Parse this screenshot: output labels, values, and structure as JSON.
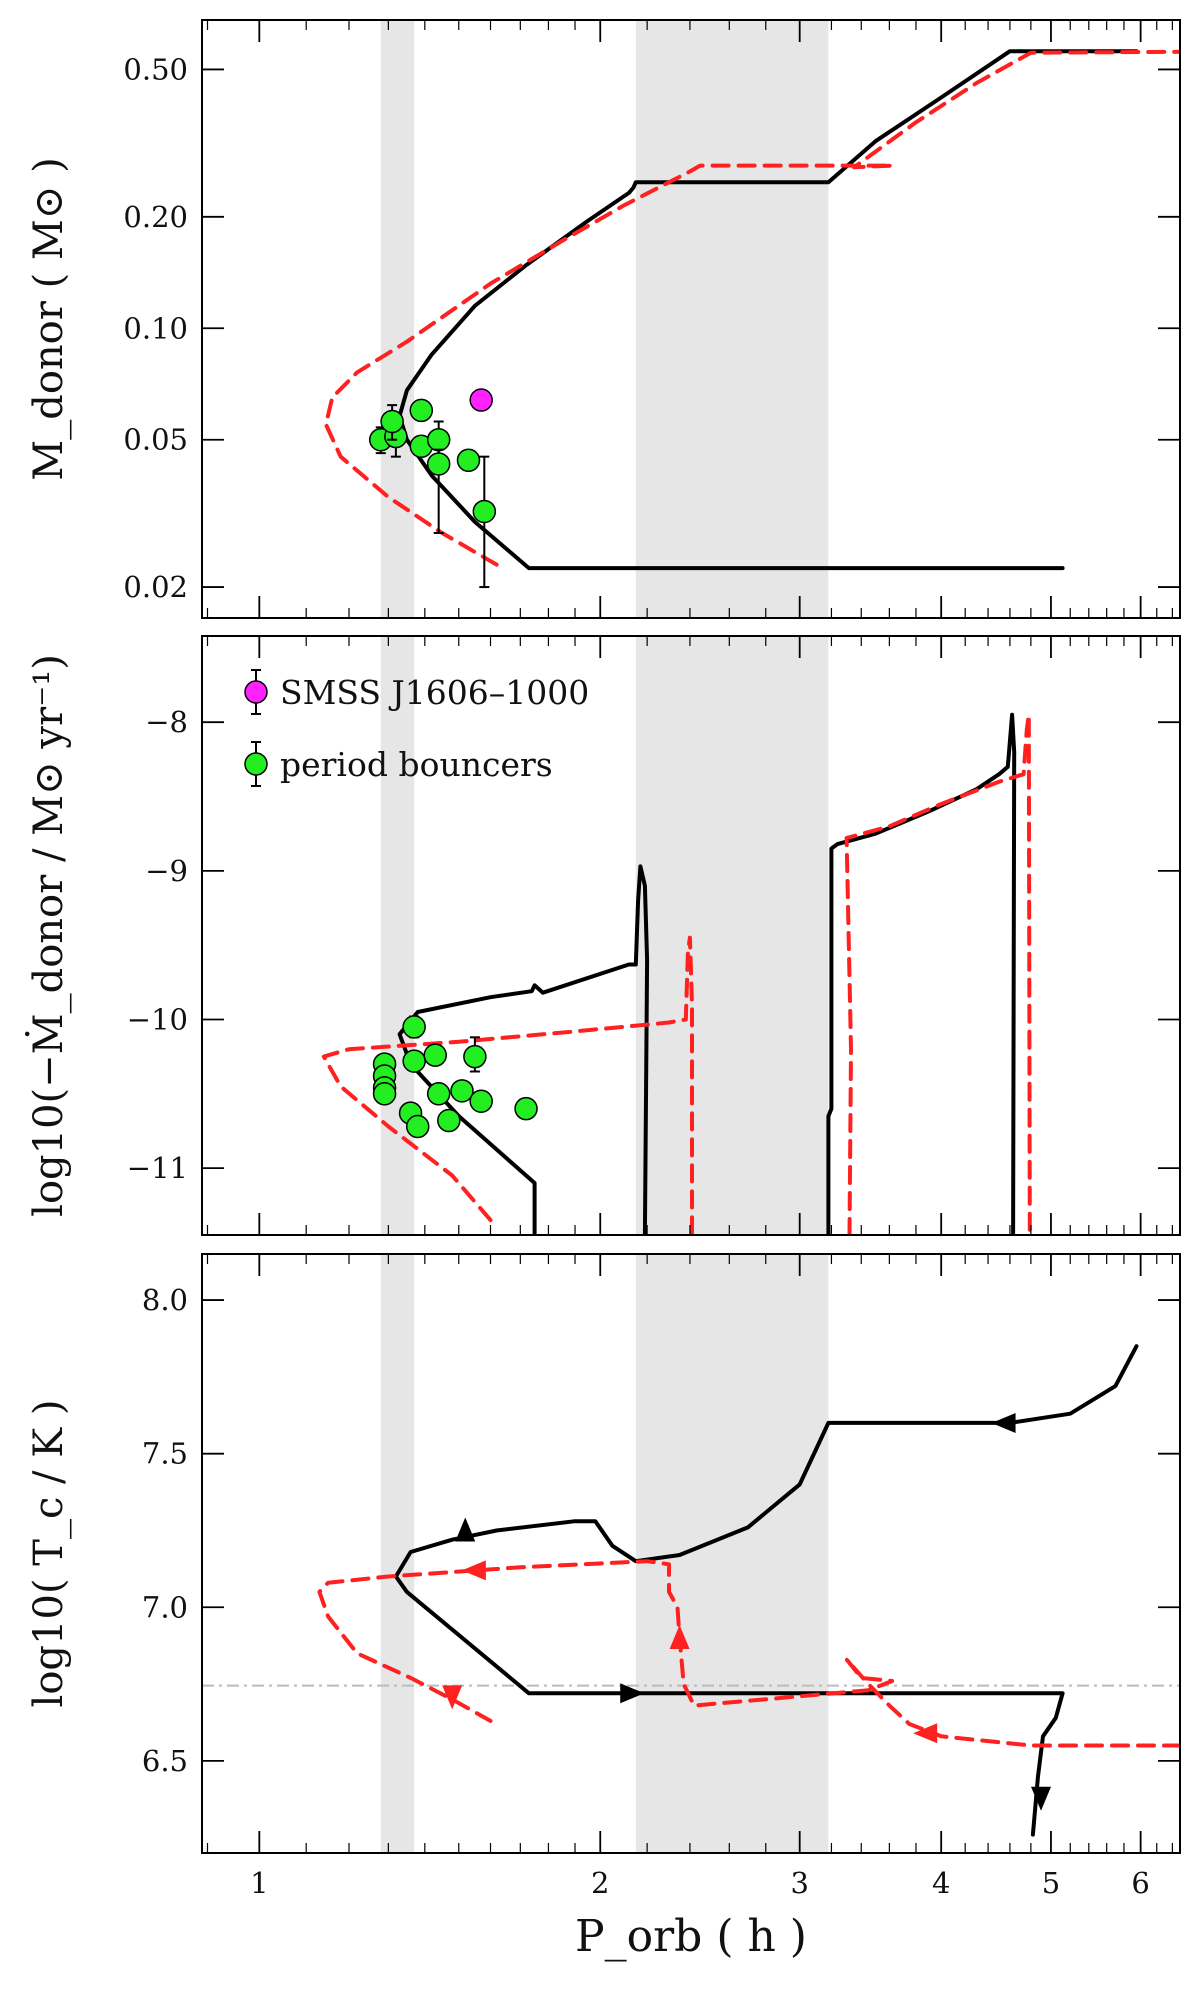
{
  "chart_data": [
    {
      "type": "line",
      "panel": "donor-mass",
      "ylabel": "M_donor ( M⊙ )",
      "yscale": "log",
      "xscale": "log",
      "ylim": [
        0.0165,
        0.68
      ],
      "xlim": [
        0.89,
        6.5
      ],
      "yticks": [
        0.02,
        0.05,
        0.1,
        0.2,
        0.5
      ],
      "ytick_labels": [
        "0.02",
        "0.05",
        "0.10",
        "0.20",
        "0.50"
      ],
      "shaded_x_ranges": [
        [
          1.28,
          1.37
        ],
        [
          2.15,
          3.18
        ]
      ],
      "series": [
        {
          "style": "solid",
          "color": "#000000",
          "points": [
            [
              5.12,
              0.0225
            ],
            [
              1.73,
              0.0225
            ],
            [
              1.55,
              0.03
            ],
            [
              1.42,
              0.04
            ],
            [
              1.35,
              0.05
            ],
            [
              1.33,
              0.058
            ],
            [
              1.35,
              0.068
            ],
            [
              1.42,
              0.085
            ],
            [
              1.55,
              0.115
            ],
            [
              1.72,
              0.148
            ],
            [
              1.95,
              0.195
            ],
            [
              2.12,
              0.232
            ],
            [
              2.14,
              0.24
            ],
            [
              2.15,
              0.248
            ],
            [
              3.18,
              0.248
            ],
            [
              3.5,
              0.32
            ],
            [
              4.0,
              0.42
            ],
            [
              4.6,
              0.56
            ],
            [
              5.95,
              0.56
            ]
          ]
        },
        {
          "style": "dashed",
          "color": "#ff2020",
          "points": [
            [
              1.62,
              0.023
            ],
            [
              1.45,
              0.028
            ],
            [
              1.3,
              0.035
            ],
            [
              1.18,
              0.045
            ],
            [
              1.145,
              0.055
            ],
            [
              1.16,
              0.065
            ],
            [
              1.22,
              0.076
            ],
            [
              1.35,
              0.092
            ],
            [
              1.6,
              0.132
            ],
            [
              1.85,
              0.172
            ],
            [
              2.1,
              0.215
            ],
            [
              2.4,
              0.265
            ],
            [
              2.45,
              0.275
            ],
            [
              3.62,
              0.275
            ],
            [
              3.35,
              0.272
            ],
            [
              3.8,
              0.36
            ],
            [
              4.3,
              0.46
            ],
            [
              4.8,
              0.555
            ],
            [
              6.5,
              0.558
            ]
          ]
        }
      ],
      "points": [
        {
          "group": "SMSS J1606–1000",
          "color": "#ff22ff",
          "data": [
            [
              1.57,
              0.064,
              null,
              null
            ]
          ]
        },
        {
          "group": "period bouncers",
          "color": "#22ee22",
          "data": [
            [
              1.28,
              0.05,
              0.046,
              0.054
            ],
            [
              1.32,
              0.051,
              0.045,
              0.057
            ],
            [
              1.31,
              0.056,
              0.05,
              0.062
            ],
            [
              1.39,
              0.06,
              null,
              null
            ],
            [
              1.39,
              0.048,
              null,
              null
            ],
            [
              1.44,
              0.05,
              0.044,
              0.056
            ],
            [
              1.44,
              0.043,
              0.028,
              0.047
            ],
            [
              1.53,
              0.044,
              null,
              null
            ],
            [
              1.58,
              0.032,
              0.02,
              0.045
            ]
          ]
        }
      ]
    },
    {
      "type": "line",
      "panel": "mass-transfer-rate",
      "ylabel": "log10(−Ṁ_donor / M⊙ yr⁻¹)",
      "xscale": "log",
      "ylim": [
        -11.45,
        -7.42
      ],
      "xlim": [
        0.89,
        6.5
      ],
      "yticks": [
        -11,
        -10,
        -9,
        -8
      ],
      "ytick_labels": [
        "−11",
        "−10",
        "−9",
        "−8"
      ],
      "shaded_x_ranges": [
        [
          1.28,
          1.37
        ],
        [
          2.15,
          3.18
        ]
      ],
      "legend": {
        "position": "top-left",
        "entries": [
          "SMSS J1606–1000",
          "period bouncers"
        ]
      },
      "series": [
        {
          "style": "solid",
          "color": "#000000",
          "segments": [
            [
              [
                1.75,
                -11.45
              ],
              [
                1.75,
                -11.1
              ],
              [
                1.5,
                -10.65
              ],
              [
                1.36,
                -10.3
              ],
              [
                1.33,
                -10.1
              ],
              [
                1.38,
                -9.95
              ],
              [
                1.6,
                -9.85
              ],
              [
                1.74,
                -9.81
              ],
              [
                1.75,
                -9.77
              ],
              [
                1.78,
                -9.82
              ],
              [
                2.12,
                -9.63
              ],
              [
                2.15,
                -9.63
              ],
              [
                2.16,
                -9.2
              ],
              [
                2.17,
                -8.97
              ],
              [
                2.19,
                -9.1
              ],
              [
                2.2,
                -9.6
              ],
              [
                2.19,
                -11.45
              ]
            ],
            [
              [
                3.18,
                -11.45
              ],
              [
                3.18,
                -10.65
              ],
              [
                3.2,
                -10.6
              ],
              [
                3.2,
                -8.85
              ],
              [
                3.24,
                -8.82
              ],
              [
                3.5,
                -8.75
              ],
              [
                3.9,
                -8.6
              ],
              [
                4.3,
                -8.45
              ],
              [
                4.5,
                -8.35
              ],
              [
                4.58,
                -8.3
              ],
              [
                4.62,
                -7.95
              ],
              [
                4.64,
                -8.2
              ],
              [
                4.63,
                -11.45
              ]
            ]
          ]
        },
        {
          "style": "dashed",
          "color": "#ff2020",
          "segments": [
            [
              [
                1.6,
                -11.35
              ],
              [
                1.48,
                -11.05
              ],
              [
                1.3,
                -10.72
              ],
              [
                1.18,
                -10.45
              ],
              [
                1.14,
                -10.25
              ],
              [
                1.2,
                -10.2
              ],
              [
                1.5,
                -10.15
              ],
              [
                1.9,
                -10.08
              ],
              [
                2.3,
                -10.02
              ],
              [
                2.38,
                -10.0
              ],
              [
                2.39,
                -9.55
              ],
              [
                2.4,
                -9.45
              ],
              [
                2.41,
                -9.9
              ],
              [
                2.41,
                -11.45
              ]
            ],
            [
              [
                3.32,
                -11.45
              ],
              [
                3.33,
                -10.2
              ],
              [
                3.3,
                -8.78
              ],
              [
                3.6,
                -8.7
              ],
              [
                4.0,
                -8.55
              ],
              [
                4.5,
                -8.4
              ],
              [
                4.73,
                -8.35
              ],
              [
                4.76,
                -8.05
              ],
              [
                4.78,
                -7.95
              ],
              [
                4.79,
                -11.45
              ]
            ]
          ]
        }
      ],
      "points": [
        {
          "group": "period bouncers",
          "color": "#22ee22",
          "data": [
            [
              1.29,
              -10.3,
              null,
              null
            ],
            [
              1.29,
              -10.38,
              null,
              null
            ],
            [
              1.29,
              -10.46,
              null,
              null
            ],
            [
              1.29,
              -10.5,
              null,
              null
            ],
            [
              1.37,
              -10.05,
              -9.98,
              -10.12
            ],
            [
              1.37,
              -10.28,
              null,
              null
            ],
            [
              1.36,
              -10.63,
              null,
              null
            ],
            [
              1.38,
              -10.72,
              null,
              null
            ],
            [
              1.43,
              -10.24,
              null,
              null
            ],
            [
              1.44,
              -10.5,
              null,
              null
            ],
            [
              1.47,
              -10.68,
              null,
              null
            ],
            [
              1.51,
              -10.48,
              null,
              null
            ],
            [
              1.55,
              -10.25,
              -10.12,
              -10.35
            ],
            [
              1.57,
              -10.55,
              null,
              null
            ],
            [
              1.72,
              -10.6,
              null,
              null
            ]
          ]
        }
      ]
    },
    {
      "type": "line",
      "panel": "central-temperature",
      "ylabel": "log10( T_c / K )",
      "xlabel": "P_orb ( h )",
      "xscale": "log",
      "ylim": [
        6.2,
        8.15
      ],
      "xlim": [
        0.89,
        6.5
      ],
      "yticks": [
        6.5,
        7.0,
        7.5,
        8.0
      ],
      "ytick_labels": [
        "6.5",
        "7.0",
        "7.5",
        "8.0"
      ],
      "xticks": [
        1,
        2,
        3,
        4,
        5,
        6
      ],
      "xtick_labels": [
        "1",
        "2",
        "3",
        "4",
        "5",
        "6"
      ],
      "shaded_x_ranges": [
        [
          1.28,
          1.37
        ],
        [
          2.15,
          3.18
        ]
      ],
      "hline": {
        "y": 6.745,
        "style": "dashdot",
        "color": "#bbbbbb"
      },
      "series": [
        {
          "style": "solid",
          "color": "#000000",
          "points": [
            [
              4.82,
              6.26
            ],
            [
              4.87,
              6.45
            ],
            [
              4.92,
              6.58
            ],
            [
              5.05,
              6.64
            ],
            [
              5.12,
              6.72
            ],
            [
              1.73,
              6.72
            ],
            [
              1.35,
              7.05
            ],
            [
              1.32,
              7.1
            ],
            [
              1.36,
              7.18
            ],
            [
              1.48,
              7.22
            ],
            [
              1.62,
              7.25
            ],
            [
              1.9,
              7.28
            ],
            [
              1.98,
              7.28
            ],
            [
              2.05,
              7.2
            ],
            [
              2.15,
              7.15
            ],
            [
              2.35,
              7.17
            ],
            [
              2.7,
              7.26
            ],
            [
              3.0,
              7.4
            ],
            [
              3.18,
              7.6
            ],
            [
              3.6,
              7.6
            ],
            [
              4.6,
              7.6
            ],
            [
              5.2,
              7.63
            ],
            [
              5.7,
              7.72
            ],
            [
              5.95,
              7.85
            ]
          ]
        },
        {
          "style": "dashed",
          "color": "#ff2020",
          "points": [
            [
              6.5,
              6.55
            ],
            [
              4.8,
              6.55
            ],
            [
              4.0,
              6.58
            ],
            [
              3.75,
              6.62
            ],
            [
              3.6,
              6.68
            ],
            [
              3.45,
              6.75
            ],
            [
              3.3,
              6.83
            ],
            [
              3.4,
              6.77
            ],
            [
              3.62,
              6.76
            ],
            [
              3.45,
              6.73
            ],
            [
              2.42,
              6.68
            ],
            [
              2.37,
              6.75
            ],
            [
              2.35,
              6.9
            ],
            [
              2.34,
              7.0
            ],
            [
              2.3,
              7.05
            ],
            [
              2.3,
              7.14
            ],
            [
              2.2,
              7.15
            ],
            [
              1.7,
              7.13
            ],
            [
              1.3,
              7.1
            ],
            [
              1.15,
              7.08
            ],
            [
              1.13,
              7.05
            ],
            [
              1.15,
              6.97
            ],
            [
              1.22,
              6.85
            ],
            [
              1.36,
              6.77
            ],
            [
              1.48,
              6.7
            ],
            [
              1.6,
              6.63
            ]
          ]
        }
      ],
      "direction_arrows": [
        {
          "x": 4.55,
          "y": 7.6,
          "color": "#000000",
          "dir": "left"
        },
        {
          "x": 1.52,
          "y": 7.25,
          "color": "#000000",
          "dir": "up"
        },
        {
          "x": 2.13,
          "y": 6.72,
          "color": "#000000",
          "dir": "right"
        },
        {
          "x": 4.9,
          "y": 6.38,
          "color": "#000000",
          "dir": "down"
        },
        {
          "x": 1.55,
          "y": 7.12,
          "color": "#ff2020",
          "dir": "left"
        },
        {
          "x": 2.35,
          "y": 6.9,
          "color": "#ff2020",
          "dir": "up"
        },
        {
          "x": 3.88,
          "y": 6.59,
          "color": "#ff2020",
          "dir": "left"
        },
        {
          "x": 1.48,
          "y": 6.71,
          "color": "#ff2020",
          "dir": "down"
        }
      ]
    }
  ]
}
